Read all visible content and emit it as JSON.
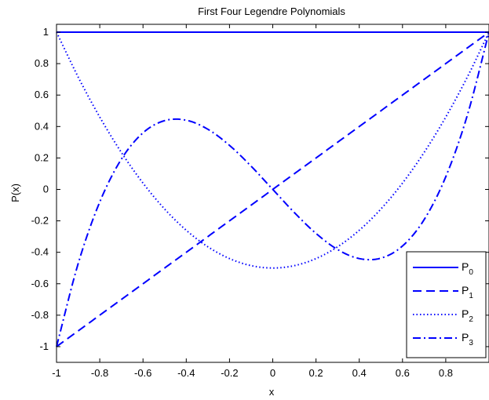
{
  "chart_data": {
    "type": "line",
    "title": "First Four Legendre Polynomials",
    "xlabel": "x",
    "ylabel": "P(x)",
    "xlim": [
      -1,
      1
    ],
    "ylim": [
      -1.1,
      1.05
    ],
    "xticks": [
      -1,
      -0.8,
      -0.6,
      -0.4,
      -0.2,
      0,
      0.2,
      0.4,
      0.6,
      0.8
    ],
    "xtick_labels": [
      "-1",
      "-0.8",
      "-0.6",
      "-0.4",
      "-0.2",
      "0",
      "0.2",
      "0.4",
      "0.6",
      "0.8"
    ],
    "yticks": [
      -1,
      -0.8,
      -0.6,
      -0.4,
      -0.2,
      0,
      0.2,
      0.4,
      0.6,
      0.8,
      1
    ],
    "ytick_labels": [
      "-1",
      "-0.8",
      "-0.6",
      "-0.4",
      "-0.2",
      "0",
      "0.2",
      "0.4",
      "0.6",
      "0.8",
      "1"
    ],
    "grid": false,
    "legend_position": "bottom-right",
    "line_color": "#0000ff",
    "x": [
      -1.0,
      -0.9,
      -0.8,
      -0.7,
      -0.6,
      -0.5,
      -0.4,
      -0.3,
      -0.2,
      -0.1,
      0.0,
      0.1,
      0.2,
      0.3,
      0.4,
      0.5,
      0.6,
      0.7,
      0.8,
      0.9,
      1.0
    ],
    "series": [
      {
        "name": "P",
        "sub": "0",
        "style": "solid",
        "values": [
          1,
          1,
          1,
          1,
          1,
          1,
          1,
          1,
          1,
          1,
          1,
          1,
          1,
          1,
          1,
          1,
          1,
          1,
          1,
          1,
          1
        ]
      },
      {
        "name": "P",
        "sub": "1",
        "style": "dashed",
        "values": [
          -1.0,
          -0.9,
          -0.8,
          -0.7,
          -0.6,
          -0.5,
          -0.4,
          -0.3,
          -0.2,
          -0.1,
          0.0,
          0.1,
          0.2,
          0.3,
          0.4,
          0.5,
          0.6,
          0.7,
          0.8,
          0.9,
          1.0
        ]
      },
      {
        "name": "P",
        "sub": "2",
        "style": "dotted",
        "values": [
          1.0,
          0.715,
          0.46,
          0.235,
          0.04,
          -0.125,
          -0.26,
          -0.365,
          -0.44,
          -0.485,
          -0.5,
          -0.485,
          -0.44,
          -0.365,
          -0.26,
          -0.125,
          0.04,
          0.235,
          0.46,
          0.715,
          1.0
        ]
      },
      {
        "name": "P",
        "sub": "3",
        "style": "dashdot",
        "values": [
          -1.0,
          -0.4725,
          -0.08,
          0.1925,
          0.36,
          0.4375,
          0.44,
          0.3825,
          0.28,
          0.1475,
          0.0,
          -0.1475,
          -0.28,
          -0.3825,
          -0.44,
          -0.4375,
          -0.36,
          -0.1925,
          0.08,
          0.4725,
          1.0
        ]
      }
    ]
  }
}
